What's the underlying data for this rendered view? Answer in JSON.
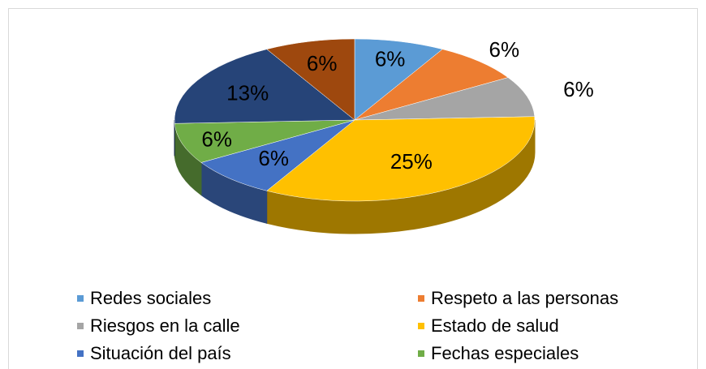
{
  "chart_data": {
    "type": "pie",
    "categories": [
      "Redes sociales",
      "Respeto a las personas",
      "Riesgos en la calle",
      "Estado de salud",
      "Situación del país",
      "Fechas especiales",
      null,
      null
    ],
    "values": [
      6,
      6,
      6,
      25,
      6,
      6,
      13,
      6
    ],
    "value_labels": [
      "6%",
      "6%",
      "6%",
      "25%",
      "6%",
      "6%",
      "13%",
      "6%"
    ],
    "colors": [
      "#5b9bd5",
      "#ed7d31",
      "#a5a5a5",
      "#ffc000",
      "#4472c4",
      "#70ad47",
      "#264478",
      "#9e480e"
    ]
  }
}
